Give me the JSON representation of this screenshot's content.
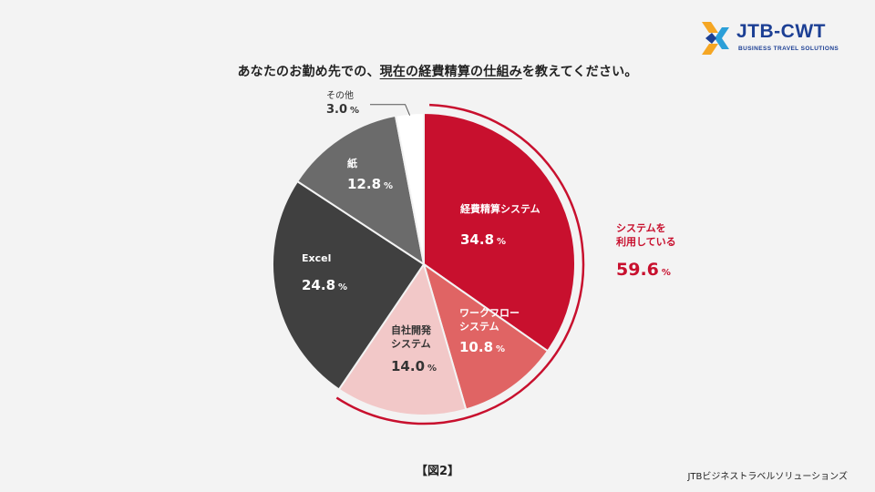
{
  "header": {
    "question_prefix": "あなたのお勤め先での、",
    "question_underlined": "現在の経費精算の仕組み",
    "question_suffix": "を教えてください。"
  },
  "logo": {
    "name": "JTB-CWT",
    "tagline": "BUSINESS TRAVEL SOLUTIONS"
  },
  "chart_data": {
    "type": "pie",
    "title": "あなたのお勤め先での、現在の経費精算の仕組みを教えてください。",
    "start_angle_deg": 0,
    "direction": "clockwise",
    "slices": [
      {
        "label": "経費精算システム",
        "value": 34.8,
        "color": "#c8102e"
      },
      {
        "label": "ワークフローシステム",
        "value": 10.8,
        "color": "#e06464"
      },
      {
        "label": "自社開発システム",
        "value": 14.0,
        "color": "#f2c8c8"
      },
      {
        "label": "Excel",
        "value": 24.8,
        "color": "#404040"
      },
      {
        "label": "紙",
        "value": 12.8,
        "color": "#6b6b6b"
      },
      {
        "label": "その他",
        "value": 3.0,
        "color": "#ffffff"
      }
    ],
    "unit": "%",
    "annotation": {
      "label_line1": "システムを",
      "label_line2": "利用している",
      "value": 59.6,
      "color": "#c8102e"
    }
  },
  "labels": {
    "keihi": {
      "name": "経費精算システム",
      "value": "34.8"
    },
    "workflow": {
      "line1": "ワークフロー",
      "line2": "システム",
      "value": "10.8"
    },
    "jisha": {
      "line1": "自社開発",
      "line2": "システム",
      "value": "14.0"
    },
    "excel": {
      "name": "Excel",
      "value": "24.8"
    },
    "kami": {
      "name": "紙",
      "value": "12.8"
    },
    "sonota": {
      "name": "その他",
      "value": "3.0"
    },
    "system": {
      "line1": "システムを",
      "line2": "利用している",
      "value": "59.6"
    },
    "unit": "%"
  },
  "figure_label": "【図2】",
  "footer": "JTBビジネストラベルソリューションズ"
}
